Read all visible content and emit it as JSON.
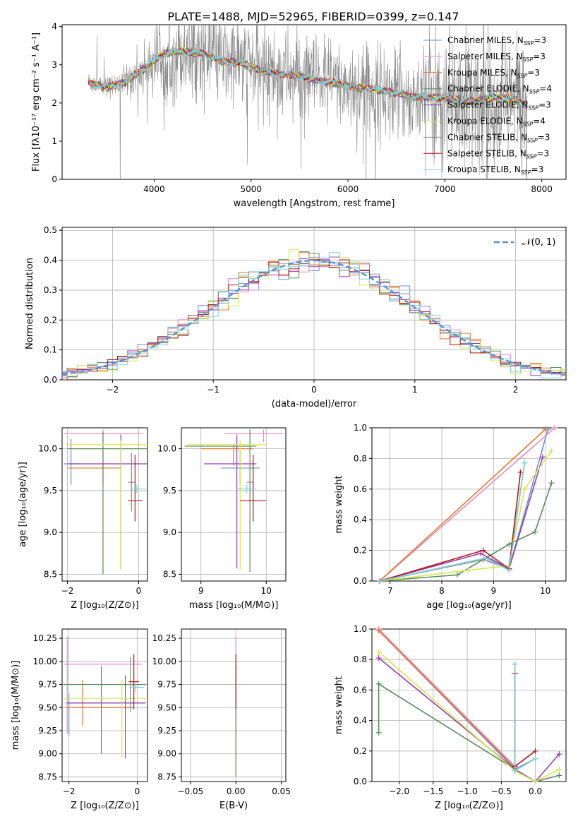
{
  "figure_title": "PLATE=1488, MJD=52965, FIBERID=0399, z=0.147",
  "colors": {
    "Chabrier MILES": "#6a8fd6",
    "Salpeter MILES": "#e88ac0",
    "Kroupa MILES": "#e0782e",
    "Chabrier ELODIE": "#5a8a5a",
    "Salpeter ELODIE": "#9a3ab0",
    "Kroupa ELODIE": "#d4e84a",
    "Chabrier STELIB": "#8a8a8a",
    "Salpeter STELIB": "#b01818",
    "Kroupa STELIB": "#7ad2d8",
    "normal_curve": "#5a90d8"
  },
  "chart_data": [
    {
      "id": "spectrum",
      "type": "line",
      "title": "PLATE=1488, MJD=52965, FIBERID=0399, z=0.147",
      "xlabel": "wavelength [Angstrom, rest frame]",
      "ylabel": "Flux [fλ10⁻¹⁷ erg cm⁻² s⁻¹ A⁻¹]",
      "xlim": [
        3050,
        8250
      ],
      "ylim": [
        0,
        4.05
      ],
      "xticks": [
        "4000",
        "5000",
        "6000",
        "7000",
        "8000"
      ],
      "yticks": [
        "0",
        "1",
        "2",
        "3",
        "4"
      ],
      "grid": false,
      "legend_position": "top-right",
      "legend": [
        {
          "label": "Chabrier MILES, N",
          "sub": "SSP",
          "suffix": "=3",
          "series": "Chabrier MILES"
        },
        {
          "label": "Salpeter MILES, N",
          "sub": "SSP",
          "suffix": "=3",
          "series": "Salpeter MILES"
        },
        {
          "label": "Kroupa MILES, N",
          "sub": "SSP",
          "suffix": "=3",
          "series": "Kroupa MILES"
        },
        {
          "label": "Chabrier ELODIE, N",
          "sub": "SSP",
          "suffix": "=4",
          "series": "Chabrier ELODIE"
        },
        {
          "label": "Salpeter ELODIE, N",
          "sub": "SSP",
          "suffix": "=3",
          "series": "Salpeter ELODIE"
        },
        {
          "label": "Kroupa ELODIE, N",
          "sub": "SSP",
          "suffix": "=4",
          "series": "Kroupa ELODIE"
        },
        {
          "label": "Chabrier STELIB, N",
          "sub": "SSP",
          "suffix": "=3",
          "series": "Chabrier STELIB"
        },
        {
          "label": "Salpeter STELIB, N",
          "sub": "SSP",
          "suffix": "=3",
          "series": "Salpeter STELIB"
        },
        {
          "label": "Kroupa STELIB, N",
          "sub": "SSP",
          "suffix": "=3",
          "series": "Kroupa STELIB"
        }
      ],
      "continuum": [
        [
          3320,
          2.55
        ],
        [
          3500,
          2.4
        ],
        [
          3700,
          2.55
        ],
        [
          3900,
          2.9
        ],
        [
          4100,
          3.3
        ],
        [
          4300,
          3.35
        ],
        [
          4500,
          3.3
        ],
        [
          4700,
          3.1
        ],
        [
          4900,
          3.05
        ],
        [
          5100,
          2.85
        ],
        [
          5300,
          2.75
        ],
        [
          5500,
          2.7
        ],
        [
          5700,
          2.6
        ],
        [
          5900,
          2.5
        ],
        [
          6100,
          2.4
        ],
        [
          6300,
          2.35
        ],
        [
          6500,
          2.25
        ],
        [
          6700,
          2.15
        ],
        [
          6900,
          2.15
        ],
        [
          7100,
          2.1
        ],
        [
          7300,
          2.05
        ],
        [
          7500,
          2.15
        ],
        [
          7700,
          2.1
        ],
        [
          7850,
          1.95
        ]
      ],
      "wavelength_range": [
        3320,
        7850
      ]
    },
    {
      "id": "residuals",
      "type": "line",
      "xlabel": "(data-model)/error",
      "ylabel": "Normed distribution",
      "xlim": [
        -2.5,
        2.5
      ],
      "ylim": [
        0,
        0.51
      ],
      "xticks": [
        "−2",
        "−1",
        "0",
        "1",
        "2"
      ],
      "yticks": [
        "0.0",
        "0.1",
        "0.2",
        "0.3",
        "0.4",
        "0.5"
      ],
      "grid": true,
      "legend_position": "top-right",
      "legend": [
        {
          "label": "𝒩(0, 1)",
          "series": "normal_curve"
        }
      ],
      "normal": {
        "mean": 0,
        "sigma": 1
      },
      "bin_width": 0.1
    },
    {
      "id": "age_vs_Z",
      "type": "errorbar",
      "xlabel": "Z [log₁₀(Z/Z⊙)]",
      "ylabel": "age  [log₁₀(age/yr)]",
      "xlim": [
        -2.15,
        0.25
      ],
      "ylim": [
        8.42,
        10.25
      ],
      "xticks": [
        "−2",
        "0"
      ],
      "yticks": [
        "8.5",
        "9.0",
        "9.5",
        "10.0"
      ],
      "grid": true,
      "points": [
        {
          "series": "Chabrier MILES",
          "x": -1.9,
          "y": 9.82,
          "xerr": [
            0.2,
            0.2
          ],
          "yerr": [
            0.25,
            0.3
          ]
        },
        {
          "series": "Salpeter MILES",
          "x": -1.0,
          "y": 10.18,
          "xerr": [
            1.1,
            1.1
          ],
          "yerr": [
            0.1,
            0.05
          ]
        },
        {
          "series": "Kroupa MILES",
          "x": -1.0,
          "y": 9.77,
          "xerr": [
            1.0,
            0.5
          ],
          "yerr": [
            0.2,
            0.2
          ]
        },
        {
          "series": "Chabrier ELODIE",
          "x": -1.0,
          "y": 10.0,
          "xerr": [
            1.0,
            1.3
          ],
          "yerr": [
            1.5,
            0.2
          ]
        },
        {
          "series": "Salpeter ELODIE",
          "x": -0.5,
          "y": 9.82,
          "xerr": [
            1.5,
            0.8
          ],
          "yerr": [
            1.25,
            0.35
          ]
        },
        {
          "series": "Kroupa ELODIE",
          "x": -0.5,
          "y": 10.05,
          "xerr": [
            1.5,
            0.8
          ],
          "yerr": [
            1.5,
            0.05
          ]
        },
        {
          "series": "Chabrier STELIB",
          "x": -0.2,
          "y": 9.6,
          "xerr": [
            0.1,
            0.1
          ],
          "yerr": [
            0.35,
            0.35
          ]
        },
        {
          "series": "Salpeter STELIB",
          "x": -0.1,
          "y": 9.38,
          "xerr": [
            0.2,
            0.2
          ],
          "yerr": [
            0.25,
            0.55
          ]
        },
        {
          "series": "Kroupa STELIB",
          "x": -0.05,
          "y": 9.52,
          "xerr": [
            0.15,
            0.25
          ],
          "yerr": [
            0.05,
            0.05
          ]
        }
      ]
    },
    {
      "id": "age_vs_mass",
      "type": "errorbar",
      "xlabel": "mass [log₁₀(M/M⊙)]",
      "ylabel": "",
      "xlim": [
        8.7,
        10.3
      ],
      "ylim": [
        8.42,
        10.25
      ],
      "xticks": [
        "9",
        "10"
      ],
      "yticks": [
        "8.5",
        "9.0",
        "9.5",
        "10.0"
      ],
      "grid": true,
      "points": [
        {
          "series": "Chabrier MILES",
          "x": 9.6,
          "y": 9.77,
          "xerr": [
            0.3,
            0.3
          ],
          "yerr": [
            0.2,
            0.2
          ]
        },
        {
          "series": "Salpeter MILES",
          "x": 9.96,
          "y": 10.18,
          "xerr": [
            0.6,
            0.3
          ],
          "yerr": [
            0.1,
            0.05
          ]
        },
        {
          "series": "Kroupa MILES",
          "x": 9.5,
          "y": 10.0,
          "xerr": [
            0.5,
            0.3
          ],
          "yerr": [
            0.2,
            0.05
          ]
        },
        {
          "series": "Chabrier ELODIE",
          "x": 9.75,
          "y": 10.03,
          "xerr": [
            1.0,
            0.1
          ],
          "yerr": [
            1.5,
            0.2
          ]
        },
        {
          "series": "Salpeter ELODIE",
          "x": 9.55,
          "y": 9.82,
          "xerr": [
            0.5,
            0.3
          ],
          "yerr": [
            1.25,
            0.35
          ]
        },
        {
          "series": "Kroupa ELODIE",
          "x": 9.6,
          "y": 10.05,
          "xerr": [
            0.8,
            0.4
          ],
          "yerr": [
            1.5,
            0.05
          ]
        },
        {
          "series": "Chabrier STELIB",
          "x": 9.75,
          "y": 9.6,
          "xerr": [
            0.05,
            0.05
          ],
          "yerr": [
            0.35,
            0.35
          ]
        },
        {
          "series": "Salpeter STELIB",
          "x": 9.8,
          "y": 9.38,
          "xerr": [
            0.2,
            0.2
          ],
          "yerr": [
            0.25,
            0.55
          ]
        },
        {
          "series": "Kroupa STELIB",
          "x": 9.7,
          "y": 9.52,
          "xerr": [
            0.15,
            0.15
          ],
          "yerr": [
            0.05,
            0.05
          ]
        }
      ]
    },
    {
      "id": "massweight_vs_age",
      "type": "line",
      "xlabel": "age  [log₁₀(age/yr)]",
      "ylabel": "mass weight",
      "xlim": [
        6.65,
        10.4
      ],
      "ylim": [
        0,
        1.0
      ],
      "xticks": [
        "7",
        "8",
        "9",
        "10"
      ],
      "yticks": [
        "0.0",
        "0.2",
        "0.4",
        "0.6",
        "0.8",
        "1.0"
      ],
      "grid": true,
      "series": [
        {
          "name": "Chabrier MILES",
          "x": [
            6.8,
            8.85,
            9.3,
            10.05
          ],
          "y": [
            0.0,
            0.15,
            0.08,
            0.99
          ]
        },
        {
          "name": "Salpeter MILES",
          "x": [
            6.8,
            10.18
          ],
          "y": [
            0.0,
            1.0
          ]
        },
        {
          "name": "Kroupa MILES",
          "x": [
            6.8,
            10.0
          ],
          "y": [
            0.0,
            0.99
          ]
        },
        {
          "name": "Chabrier ELODIE",
          "x": [
            6.8,
            8.3,
            8.8,
            9.3,
            9.8,
            10.12
          ],
          "y": [
            0.0,
            0.04,
            0.14,
            0.24,
            0.32,
            0.64
          ]
        },
        {
          "name": "Salpeter ELODIE",
          "x": [
            6.8,
            8.75,
            9.3,
            9.95
          ],
          "y": [
            0.0,
            0.18,
            0.08,
            0.81
          ]
        },
        {
          "name": "Kroupa ELODIE",
          "x": [
            6.8,
            8.5,
            9.3,
            9.6,
            10.12
          ],
          "y": [
            0.0,
            0.07,
            0.1,
            0.6,
            0.85
          ]
        },
        {
          "name": "Chabrier STELIB",
          "x": [
            6.8,
            8.8,
            9.3,
            9.6
          ],
          "y": [
            0.0,
            0.14,
            0.08,
            0.77
          ]
        },
        {
          "name": "Salpeter STELIB",
          "x": [
            6.8,
            8.8,
            9.3,
            9.52
          ],
          "y": [
            0.0,
            0.2,
            0.08,
            0.71
          ]
        },
        {
          "name": "Kroupa STELIB",
          "x": [
            6.8,
            8.85,
            9.3,
            9.6
          ],
          "y": [
            0.0,
            0.15,
            0.07,
            0.77
          ]
        }
      ]
    },
    {
      "id": "mass_vs_Z",
      "type": "errorbar",
      "xlabel": "Z [log₁₀(Z/Z⊙)]",
      "ylabel": "mass [log₁₀(M/M⊙)]",
      "xlim": [
        -2.2,
        0.3
      ],
      "ylim": [
        8.7,
        10.35
      ],
      "xticks": [
        "−2",
        "0"
      ],
      "yticks": [
        "8.75",
        "9.00",
        "9.25",
        "9.50",
        "9.75",
        "10.00",
        "10.25"
      ],
      "grid": true,
      "points": [
        {
          "series": "Chabrier MILES",
          "x": -2.0,
          "y": 9.55,
          "xerr": [
            0.1,
            2.2
          ],
          "yerr": [
            0.35,
            0.1
          ]
        },
        {
          "series": "Salpeter MILES",
          "x": -2.05,
          "y": 9.97,
          "xerr": [
            0.1,
            2.2
          ],
          "yerr": [
            0.75,
            0.3
          ]
        },
        {
          "series": "Kroupa MILES",
          "x": -1.6,
          "y": 9.5,
          "xerr": [
            0.5,
            1.5
          ],
          "yerr": [
            0.2,
            0.3
          ]
        },
        {
          "series": "Chabrier ELODIE",
          "x": -1.05,
          "y": 9.75,
          "xerr": [
            1.1,
            1.3
          ],
          "yerr": [
            0.75,
            0.2
          ]
        },
        {
          "series": "Salpeter ELODIE",
          "x": -0.35,
          "y": 9.55,
          "xerr": [
            1.7,
            0.6
          ],
          "yerr": [
            0.6,
            0.3
          ]
        },
        {
          "series": "Kroupa ELODIE",
          "x": -0.45,
          "y": 9.6,
          "xerr": [
            1.7,
            0.7
          ],
          "yerr": [
            0.65,
            0.2
          ]
        },
        {
          "series": "Chabrier STELIB",
          "x": -0.2,
          "y": 9.75,
          "xerr": [
            0.1,
            0.1
          ],
          "yerr": [
            0.3,
            0.3
          ]
        },
        {
          "series": "Salpeter STELIB",
          "x": -0.1,
          "y": 9.78,
          "xerr": [
            0.15,
            0.15
          ],
          "yerr": [
            0.3,
            0.3
          ]
        },
        {
          "series": "Kroupa STELIB",
          "x": -0.05,
          "y": 9.72,
          "xerr": [
            0.15,
            0.25
          ],
          "yerr": [
            0.05,
            0.05
          ]
        }
      ]
    },
    {
      "id": "mass_vs_ebv",
      "type": "errorbar",
      "xlabel": "E(B-V)",
      "ylabel": "",
      "xlim": [
        -0.06,
        0.055
      ],
      "ylim": [
        8.7,
        10.35
      ],
      "xticks": [
        "−0.05",
        "0.00",
        "0.05"
      ],
      "yticks": [
        "8.75",
        "9.00",
        "9.25",
        "9.50",
        "9.75",
        "10.00",
        "10.25"
      ],
      "grid": true,
      "points": [
        {
          "series": "Salpeter MILES",
          "x": 0.0,
          "y": 9.97,
          "xerr": [
            0,
            0
          ],
          "yerr": [
            0.75,
            0.3
          ]
        },
        {
          "series": "Chabrier MILES",
          "x": 0.0,
          "y": 9.55,
          "xerr": [
            0,
            0
          ],
          "yerr": [
            0.35,
            0.1
          ]
        },
        {
          "series": "Kroupa ELODIE",
          "x": 0.0,
          "y": 9.6,
          "xerr": [
            0,
            0
          ],
          "yerr": [
            0.65,
            0.2
          ]
        },
        {
          "series": "Chabrier ELODIE",
          "x": 0.0,
          "y": 9.5,
          "xerr": [
            0,
            0
          ],
          "yerr": [
            0.75,
            0.45
          ]
        },
        {
          "series": "Salpeter STELIB",
          "x": 0.0,
          "y": 9.78,
          "xerr": [
            0,
            0
          ],
          "yerr": [
            0.3,
            0.3
          ]
        }
      ]
    },
    {
      "id": "massweight_vs_Z",
      "type": "line",
      "xlabel": "Z [log₁₀(Z/Z⊙)]",
      "ylabel": "mass weight",
      "xlim": [
        -2.4,
        0.45
      ],
      "ylim": [
        0,
        1.0
      ],
      "xticks": [
        "−2.0",
        "−1.5",
        "−1.0",
        "−0.5",
        "0.0"
      ],
      "yticks": [
        "0.0",
        "0.2",
        "0.4",
        "0.6",
        "0.8",
        "1.0"
      ],
      "grid": true,
      "series": [
        {
          "name": "Chabrier MILES",
          "x": [
            -2.3,
            -0.3,
            0.0
          ],
          "y": [
            0.99,
            0.08,
            0.15
          ]
        },
        {
          "name": "Salpeter MILES",
          "x": [
            -2.3,
            -0.3
          ],
          "y": [
            1.0,
            0.1
          ]
        },
        {
          "name": "Kroupa MILES",
          "x": [
            -2.3,
            -0.3
          ],
          "y": [
            0.99,
            0.09
          ]
        },
        {
          "name": "Chabrier ELODIE",
          "x": [
            -2.3,
            -2.3,
            -0.3,
            0.0,
            0.35
          ],
          "y": [
            0.32,
            0.64,
            0.08,
            0.0,
            0.04
          ]
        },
        {
          "name": "Salpeter ELODIE",
          "x": [
            -2.3,
            -0.3,
            0.0,
            0.35
          ],
          "y": [
            0.81,
            0.08,
            0.0,
            0.18
          ]
        },
        {
          "name": "Kroupa ELODIE",
          "x": [
            -2.3,
            -0.3,
            0.0,
            0.35
          ],
          "y": [
            0.85,
            0.07,
            0.0,
            0.08
          ]
        },
        {
          "name": "Chabrier STELIB",
          "x": [
            -0.3,
            -0.3
          ],
          "y": [
            0.77,
            0.07
          ]
        },
        {
          "name": "Salpeter STELIB",
          "x": [
            -0.3,
            -0.3,
            0.0
          ],
          "y": [
            0.71,
            0.1,
            0.2
          ]
        },
        {
          "name": "Kroupa STELIB",
          "x": [
            -0.3,
            -0.3,
            0.0
          ],
          "y": [
            0.77,
            0.07,
            0.15
          ]
        }
      ]
    }
  ]
}
